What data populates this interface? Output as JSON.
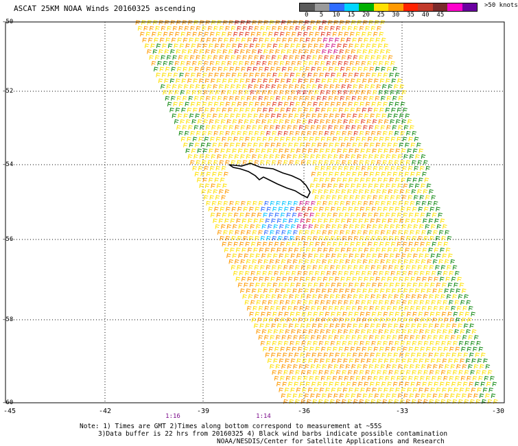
{
  "title": "ASCAT 25KM NOAA Winds 20160325 ascending",
  "legend": {
    "ticks": [
      "0",
      "5",
      "10",
      "15",
      "20",
      "25",
      "30",
      "35",
      "40",
      "45"
    ],
    "unit": ">50 knots",
    "colors": [
      "#5a5a5a",
      "#9a9a9a",
      "#2f6cff",
      "#00d5ff",
      "#00b000",
      "#ffe000",
      "#ff9900",
      "#ff2200",
      "#c23a2a",
      "#7a2a2a",
      "#ff00cc",
      "#6a00a0"
    ]
  },
  "axes": {
    "y_labels": [
      "-50",
      "-52",
      "-54",
      "-56",
      "-58",
      "-60"
    ],
    "x_labels": [
      "-45",
      "-42",
      "-39",
      "-36",
      "-33",
      "-30"
    ]
  },
  "time_labels": [
    "1:16",
    "1:14"
  ],
  "notes": {
    "line1": "Note: 1) Times are GMT 2)Times along bottom correspond to measurement at ~55S",
    "line2": "3)Data buffer is 22 hrs from 20160325 4) Black wind barbs indicate possible contamination",
    "line3": "NOAA/NESDIS/Center for Satellite Applications and Research"
  },
  "map_colors": {
    "grid": "#000000",
    "yellow": "#ffe000",
    "orange": "#ff9900",
    "red": "#e23a1e",
    "green": "#138a13",
    "blue": "#2f6cff",
    "cyan": "#00c4ff",
    "magenta": "#d0208a",
    "coast": "#000000"
  }
}
